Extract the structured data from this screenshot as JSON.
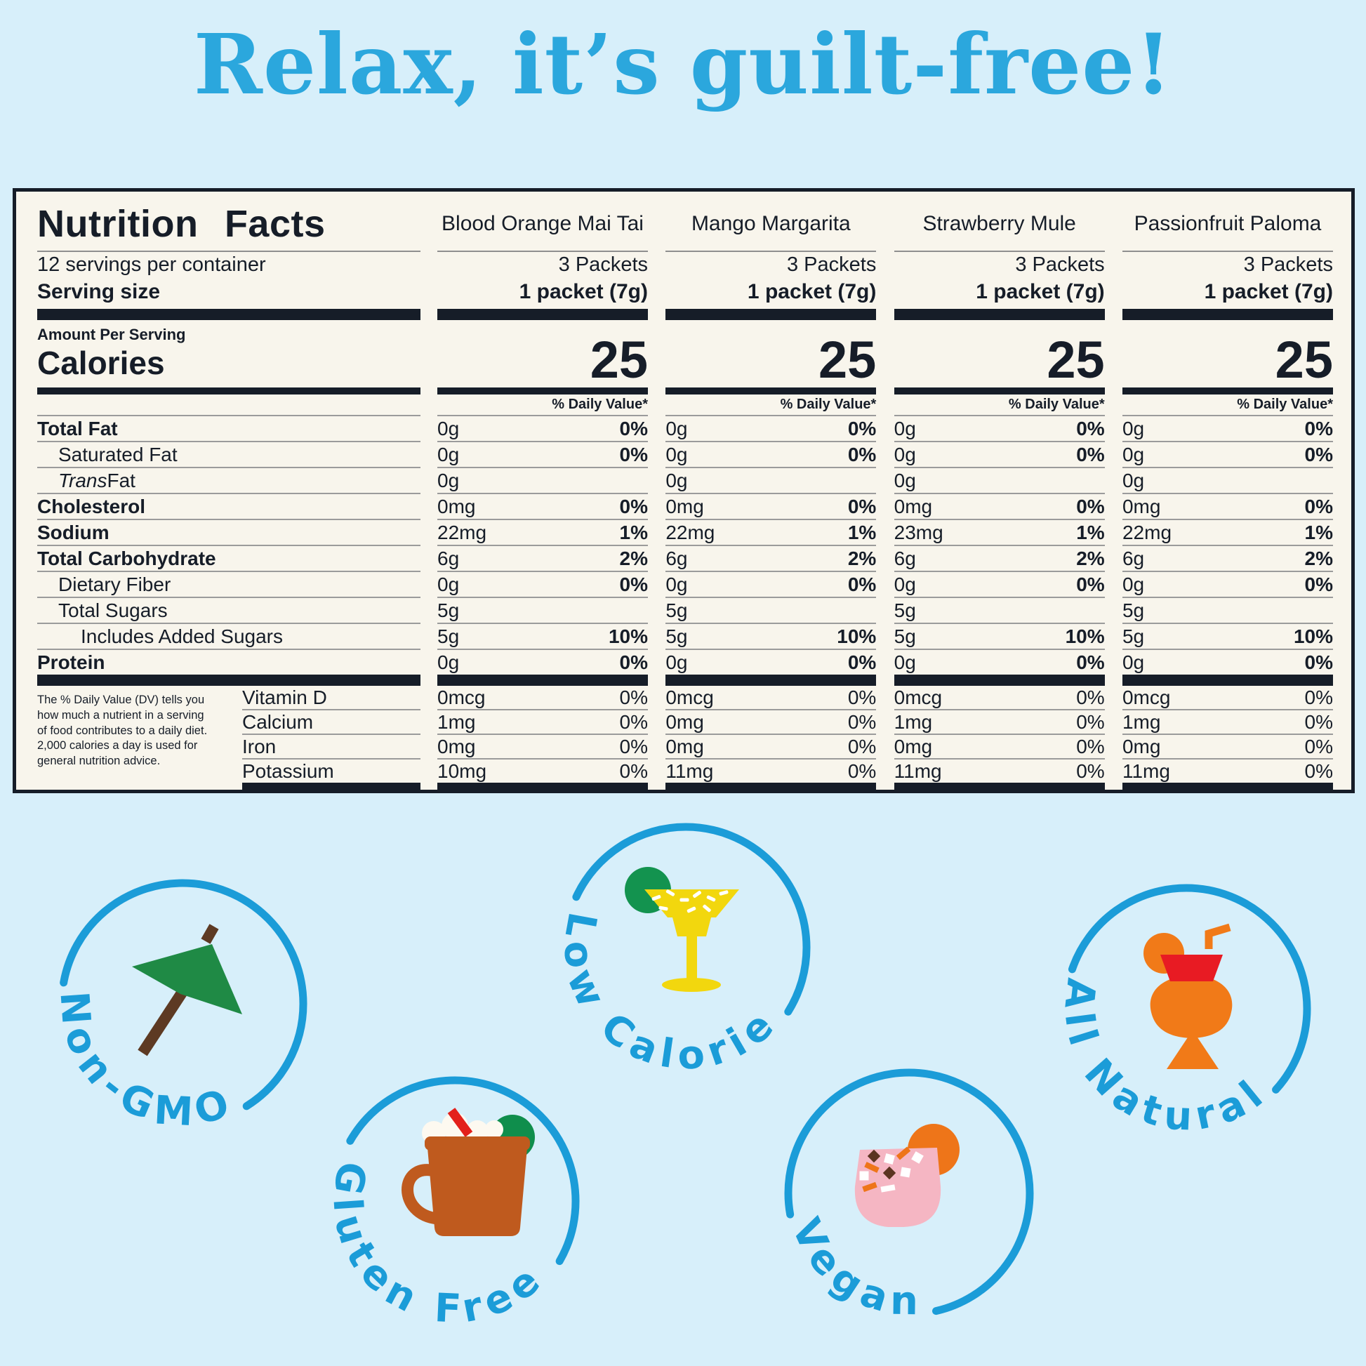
{
  "title": "Relax, it’s guilt-free!",
  "nutrition_panel": {
    "heading": "Nutrition Facts",
    "servings_per_container": "12 servings per container",
    "serving_size_label": "Serving size",
    "amount_per_serving_label": "Amount Per Serving",
    "calories_label": "Calories",
    "daily_value_header": "% Daily Value*",
    "footnote": "The % Daily Value (DV) tells you how much a nutrient in a serving of food contributes to a daily diet. 2,000 calories a day is used for general nutrition advice.",
    "nutrient_rows": [
      {
        "label": "Total Fat"
      },
      {
        "label": "Saturated Fat"
      },
      {
        "label_italic": "Trans",
        "label": " Fat"
      },
      {
        "label": "Cholesterol"
      },
      {
        "label": "Sodium"
      },
      {
        "label": "Total Carbohydrate"
      },
      {
        "label": "Dietary Fiber"
      },
      {
        "label": "Total Sugars"
      },
      {
        "label": "Includes Added Sugars"
      },
      {
        "label": "Protein"
      }
    ],
    "vitamin_rows": [
      {
        "label": "Vitamin D"
      },
      {
        "label": "Calcium"
      },
      {
        "label": "Iron"
      },
      {
        "label": "Potassium"
      }
    ],
    "flavors": [
      {
        "name": "Blood Orange Mai Tai",
        "packets": "3 Packets",
        "serving_size": "1 packet (7g)",
        "calories": "25",
        "nutrients": [
          {
            "amount": "0g",
            "dv": "0%"
          },
          {
            "amount": "0g",
            "dv": "0%"
          },
          {
            "amount": "0g",
            "dv": ""
          },
          {
            "amount": "0mg",
            "dv": "0%"
          },
          {
            "amount": "22mg",
            "dv": "1%"
          },
          {
            "amount": "6g",
            "dv": "2%"
          },
          {
            "amount": "0g",
            "dv": "0%"
          },
          {
            "amount": "5g",
            "dv": ""
          },
          {
            "amount": "5g",
            "dv": "10%"
          },
          {
            "amount": "0g",
            "dv": "0%"
          }
        ],
        "vitamins": [
          {
            "amount": "0mcg",
            "dv": "0%"
          },
          {
            "amount": "1mg",
            "dv": "0%"
          },
          {
            "amount": "0mg",
            "dv": "0%"
          },
          {
            "amount": "10mg",
            "dv": "0%"
          }
        ]
      },
      {
        "name": "Mango Margarita",
        "packets": "3 Packets",
        "serving_size": "1 packet (7g)",
        "calories": "25",
        "nutrients": [
          {
            "amount": "0g",
            "dv": "0%"
          },
          {
            "amount": "0g",
            "dv": "0%"
          },
          {
            "amount": "0g",
            "dv": ""
          },
          {
            "amount": "0mg",
            "dv": "0%"
          },
          {
            "amount": "22mg",
            "dv": "1%"
          },
          {
            "amount": "6g",
            "dv": "2%"
          },
          {
            "amount": "0g",
            "dv": "0%"
          },
          {
            "amount": "5g",
            "dv": ""
          },
          {
            "amount": "5g",
            "dv": "10%"
          },
          {
            "amount": "0g",
            "dv": "0%"
          }
        ],
        "vitamins": [
          {
            "amount": "0mcg",
            "dv": "0%"
          },
          {
            "amount": "0mg",
            "dv": "0%"
          },
          {
            "amount": "0mg",
            "dv": "0%"
          },
          {
            "amount": "11mg",
            "dv": "0%"
          }
        ]
      },
      {
        "name": "Strawberry Mule",
        "packets": "3 Packets",
        "serving_size": "1 packet (7g)",
        "calories": "25",
        "nutrients": [
          {
            "amount": "0g",
            "dv": "0%"
          },
          {
            "amount": "0g",
            "dv": "0%"
          },
          {
            "amount": "0g",
            "dv": ""
          },
          {
            "amount": "0mg",
            "dv": "0%"
          },
          {
            "amount": "23mg",
            "dv": "1%"
          },
          {
            "amount": "6g",
            "dv": "2%"
          },
          {
            "amount": "0g",
            "dv": "0%"
          },
          {
            "amount": "5g",
            "dv": ""
          },
          {
            "amount": "5g",
            "dv": "10%"
          },
          {
            "amount": "0g",
            "dv": "0%"
          }
        ],
        "vitamins": [
          {
            "amount": "0mcg",
            "dv": "0%"
          },
          {
            "amount": "1mg",
            "dv": "0%"
          },
          {
            "amount": "0mg",
            "dv": "0%"
          },
          {
            "amount": "11mg",
            "dv": "0%"
          }
        ]
      },
      {
        "name": "Passionfruit Paloma",
        "packets": "3 Packets",
        "serving_size": "1 packet (7g)",
        "calories": "25",
        "nutrients": [
          {
            "amount": "0g",
            "dv": "0%"
          },
          {
            "amount": "0g",
            "dv": "0%"
          },
          {
            "amount": "0g",
            "dv": ""
          },
          {
            "amount": "0mg",
            "dv": "0%"
          },
          {
            "amount": "22mg",
            "dv": "1%"
          },
          {
            "amount": "6g",
            "dv": "2%"
          },
          {
            "amount": "0g",
            "dv": "0%"
          },
          {
            "amount": "5g",
            "dv": ""
          },
          {
            "amount": "5g",
            "dv": "10%"
          },
          {
            "amount": "0g",
            "dv": "0%"
          }
        ],
        "vitamins": [
          {
            "amount": "0mcg",
            "dv": "0%"
          },
          {
            "amount": "1mg",
            "dv": "0%"
          },
          {
            "amount": "0mg",
            "dv": "0%"
          },
          {
            "amount": "11mg",
            "dv": "0%"
          }
        ]
      }
    ]
  },
  "badges": [
    {
      "label": "Non-GMO",
      "icon": "cocktail-umbrella-icon"
    },
    {
      "label": "Low Calorie",
      "icon": "margarita-glass-icon"
    },
    {
      "label": "Gluten Free",
      "icon": "mule-mug-icon"
    },
    {
      "label": "Vegan",
      "icon": "cocktail-tumbler-icon"
    },
    {
      "label": "All Natural",
      "icon": "hurricane-glass-icon"
    }
  ],
  "colors": {
    "background": "#D7EFFA",
    "title_blue": "#2BA7DD",
    "accent_blue": "#1B9CD8",
    "panel_background": "#F8F5EC",
    "label_ink": "#161D28",
    "umbrella_green": "#1F8A45",
    "lime_green": "#13934F",
    "margarita_yellow": "#F2D70E",
    "mug_copper": "#BF5A1E",
    "straw_red": "#E3201B",
    "vegan_pink": "#F5B6C3",
    "orange": "#EE7519",
    "hurricane_orange": "#F17A18",
    "band_red": "#E81B23",
    "stick_brown": "#5D3A23"
  }
}
